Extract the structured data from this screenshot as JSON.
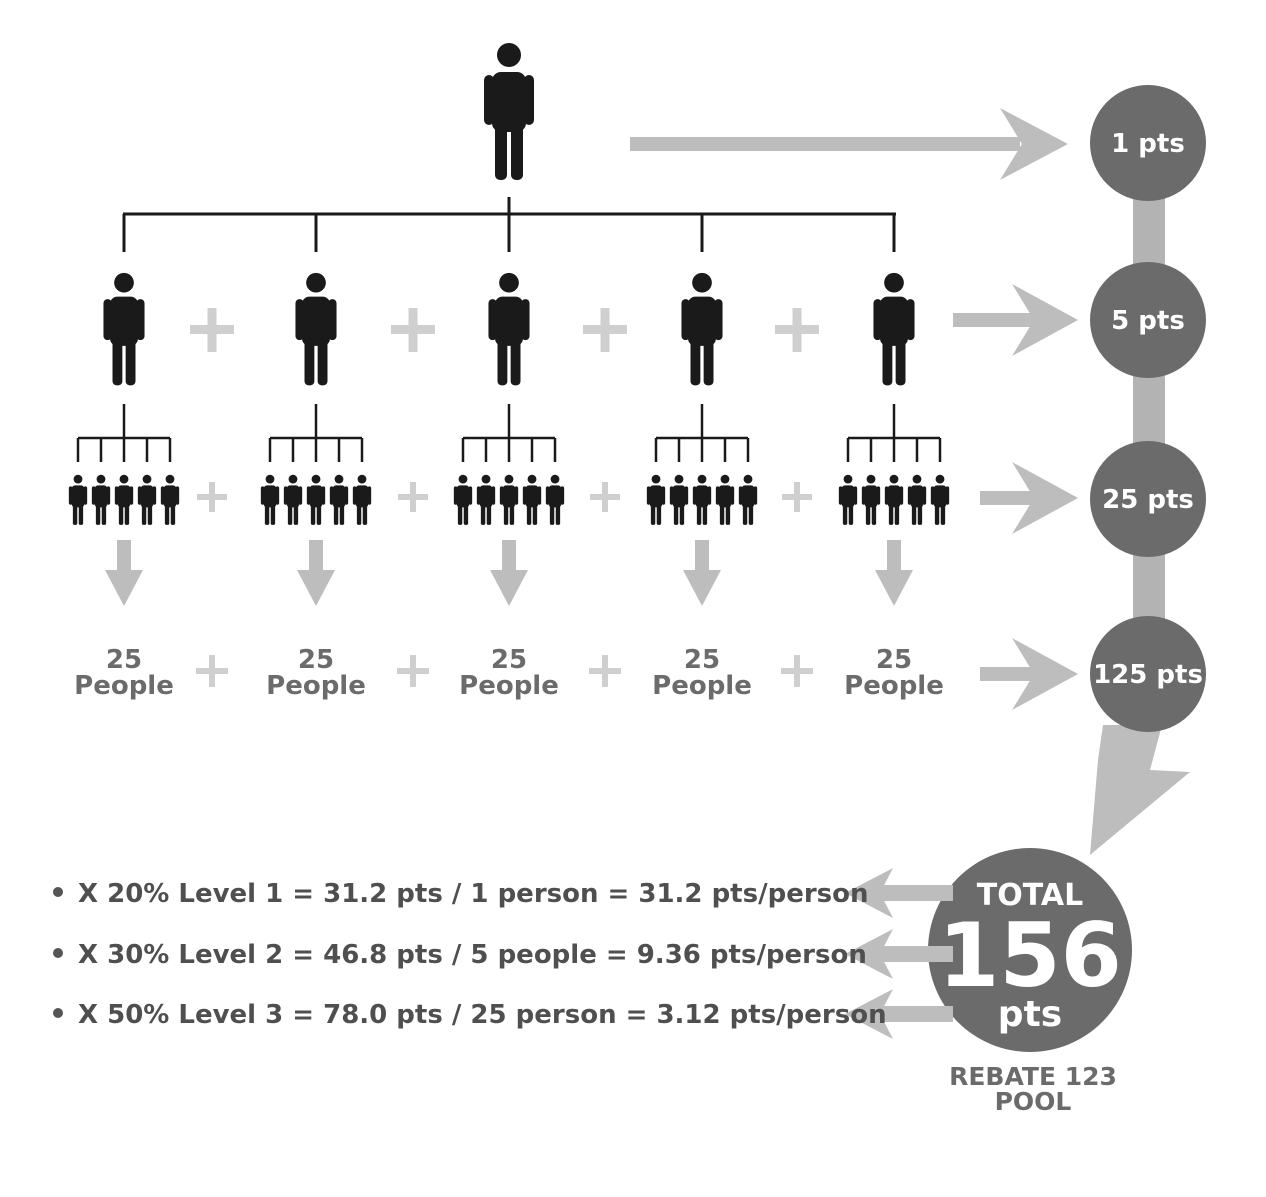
{
  "levels": [
    {
      "points": "1 pts"
    },
    {
      "points": "5 pts"
    },
    {
      "points": "25 pts"
    },
    {
      "points": "125 pts"
    }
  ],
  "groups": [
    {
      "count": "25",
      "word": "People"
    },
    {
      "count": "25",
      "word": "People"
    },
    {
      "count": "25",
      "word": "People"
    },
    {
      "count": "25",
      "word": "People"
    },
    {
      "count": "25",
      "word": "People"
    }
  ],
  "plus_sign": "+",
  "total": {
    "label": "TOTAL",
    "value": "156",
    "unit": "pts"
  },
  "pool": {
    "line1": "REBATE 123",
    "line2": "POOL"
  },
  "distribution": [
    {
      "text": "X 20% Level 1 = 31.2 pts / 1 person = 31.2 pts/person"
    },
    {
      "text": "X 30% Level 2 = 46.8 pts / 5 people = 9.36 pts/person"
    },
    {
      "text": "X 50% Level 3 = 78.0 pts / 25 person = 3.12 pts/person"
    }
  ],
  "colors": {
    "person": "#1a1a1a",
    "arrow": "#bdbdbd",
    "circle": "#6b6b6b",
    "connector": "#b3b3b3",
    "plus": "#cfcfcf"
  },
  "icons": [
    "person-icon",
    "arrow-right-icon",
    "arrow-down-icon",
    "arrow-left-icon",
    "plus-icon"
  ]
}
